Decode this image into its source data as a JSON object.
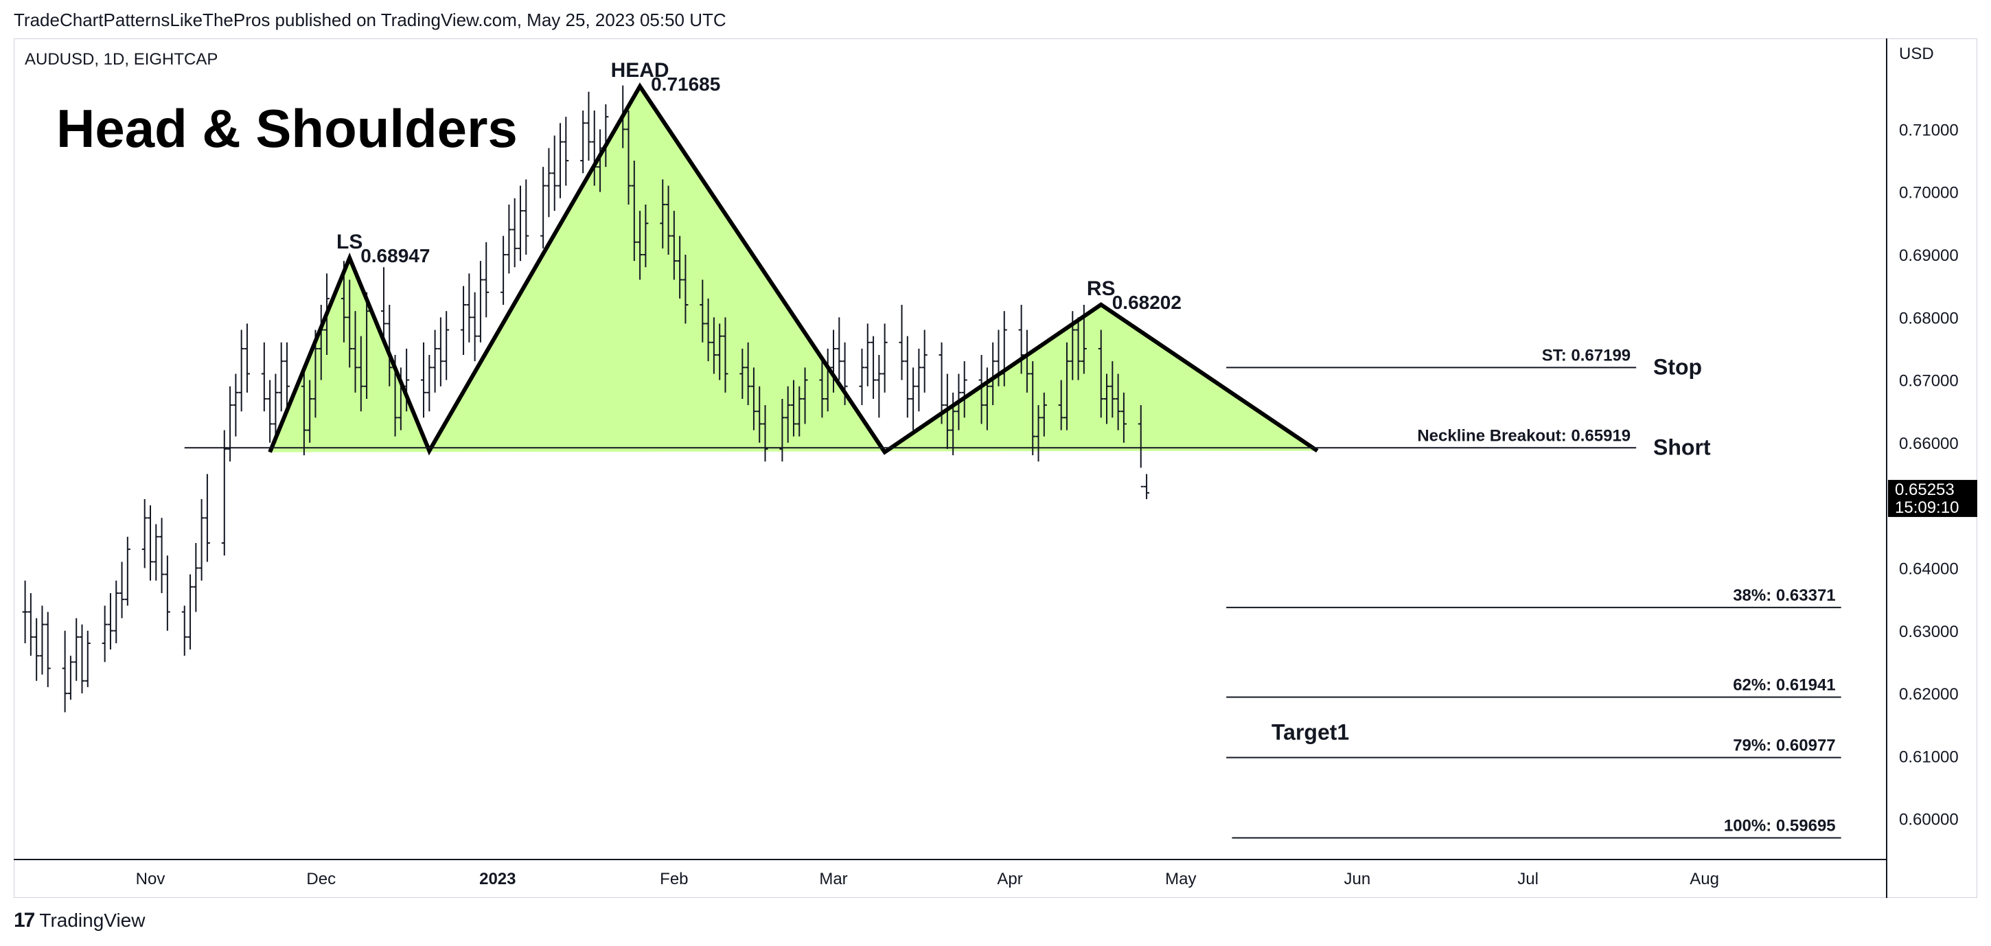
{
  "publisher_line": "TradeChartPatternsLikeThePros published on TradingView.com, May 25, 2023 05:50 UTC",
  "footer": {
    "brand": "TradingView",
    "logo_icon": "tradingview-logo-icon"
  },
  "chart_data": {
    "type": "line",
    "symbol": "AUDUSD, 1D, EIGHTCAP",
    "title": "Head & Shoulders",
    "currency": "USD",
    "ylim": [
      0.5935,
      0.7245
    ],
    "xlim": [
      "2022-10-08",
      "2023-09-02"
    ],
    "x_ticks": [
      {
        "date": "2022-11-01",
        "label": "Nov",
        "bold": false
      },
      {
        "date": "2022-12-01",
        "label": "Dec",
        "bold": false
      },
      {
        "date": "2023-01-01",
        "label": "2023",
        "bold": true
      },
      {
        "date": "2023-02-01",
        "label": "Feb",
        "bold": false
      },
      {
        "date": "2023-03-01",
        "label": "Mar",
        "bold": false
      },
      {
        "date": "2023-04-01",
        "label": "Apr",
        "bold": false
      },
      {
        "date": "2023-05-01",
        "label": "May",
        "bold": false
      },
      {
        "date": "2023-06-01",
        "label": "Jun",
        "bold": false
      },
      {
        "date": "2023-07-01",
        "label": "Jul",
        "bold": false
      },
      {
        "date": "2023-08-01",
        "label": "Aug",
        "bold": false
      }
    ],
    "y_ticks": [
      "0.60000",
      "0.61000",
      "0.62000",
      "0.63000",
      "0.64000",
      "0.66000",
      "0.67000",
      "0.68000",
      "0.69000",
      "0.70000",
      "0.71000"
    ],
    "last_price": {
      "value": "0.65253",
      "countdown": "15:09:10",
      "y": 0.65253
    },
    "pattern": {
      "fill_color": "#ccff99",
      "line_color": "#000000",
      "points": [
        {
          "date": "2022-11-22",
          "price": 0.6585
        },
        {
          "date": "2022-12-06",
          "price": 0.68947
        },
        {
          "date": "2022-12-20",
          "price": 0.6587
        },
        {
          "date": "2023-01-26",
          "price": 0.71685
        },
        {
          "date": "2023-03-10",
          "price": 0.6585
        },
        {
          "date": "2023-04-17",
          "price": 0.68202
        },
        {
          "date": "2023-05-25",
          "price": 0.6587
        }
      ]
    },
    "peak_labels": [
      {
        "name": "LS",
        "value": "0.68947",
        "date": "2022-12-06",
        "price": 0.68947
      },
      {
        "name": "HEAD",
        "value": "0.71685",
        "date": "2023-01-26",
        "price": 0.71685
      },
      {
        "name": "RS",
        "value": "0.68202",
        "date": "2023-04-17",
        "price": 0.68202
      }
    ],
    "levels": [
      {
        "label": "ST: 0.67199",
        "price": 0.67199,
        "from": "2023-05-09",
        "to": "2023-07-20",
        "side_label": "Stop"
      },
      {
        "label": "Neckline Breakout: 0.65919",
        "price": 0.65919,
        "from": "2022-11-07",
        "to": "2023-07-20",
        "side_label": "Short"
      },
      {
        "label": "38%: 0.63371",
        "price": 0.63371,
        "from": "2023-05-09",
        "to": "2023-08-25",
        "side_label": ""
      },
      {
        "label": "62%: 0.61941",
        "price": 0.61941,
        "from": "2023-05-09",
        "to": "2023-08-25",
        "side_label": ""
      },
      {
        "label": "79%: 0.60977",
        "price": 0.60977,
        "from": "2023-05-09",
        "to": "2023-08-25",
        "side_label": "Target1"
      },
      {
        "label": "100%: 0.59695",
        "price": 0.59695,
        "from": "2023-05-10",
        "to": "2023-08-25",
        "side_label": ""
      }
    ],
    "ohlc_bars": [
      [
        0.633,
        0.638,
        0.628,
        0.633
      ],
      [
        0.633,
        0.636,
        0.626,
        0.629
      ],
      [
        0.629,
        0.632,
        0.622,
        0.626
      ],
      [
        0.626,
        0.634,
        0.623,
        0.631
      ],
      [
        0.631,
        0.633,
        0.621,
        0.624
      ],
      [
        0.624,
        0.63,
        0.617,
        0.62
      ],
      [
        0.62,
        0.626,
        0.619,
        0.625
      ],
      [
        0.625,
        0.632,
        0.622,
        0.629
      ],
      [
        0.629,
        0.631,
        0.62,
        0.622
      ],
      [
        0.622,
        0.63,
        0.621,
        0.628
      ],
      [
        0.628,
        0.634,
        0.625,
        0.631
      ],
      [
        0.631,
        0.636,
        0.627,
        0.63
      ],
      [
        0.63,
        0.638,
        0.628,
        0.636
      ],
      [
        0.636,
        0.641,
        0.632,
        0.635
      ],
      [
        0.635,
        0.645,
        0.634,
        0.643
      ],
      [
        0.643,
        0.651,
        0.64,
        0.648
      ],
      [
        0.648,
        0.65,
        0.638,
        0.641
      ],
      [
        0.641,
        0.647,
        0.638,
        0.645
      ],
      [
        0.645,
        0.648,
        0.636,
        0.639
      ],
      [
        0.639,
        0.642,
        0.63,
        0.633
      ],
      [
        0.633,
        0.634,
        0.626,
        0.629
      ],
      [
        0.629,
        0.639,
        0.627,
        0.637
      ],
      [
        0.637,
        0.644,
        0.633,
        0.64
      ],
      [
        0.64,
        0.651,
        0.638,
        0.648
      ],
      [
        0.648,
        0.655,
        0.641,
        0.644
      ],
      [
        0.644,
        0.662,
        0.642,
        0.659
      ],
      [
        0.659,
        0.669,
        0.657,
        0.666
      ],
      [
        0.666,
        0.671,
        0.661,
        0.668
      ],
      [
        0.668,
        0.678,
        0.665,
        0.675
      ],
      [
        0.675,
        0.679,
        0.668,
        0.671
      ],
      [
        0.671,
        0.676,
        0.665,
        0.667
      ],
      [
        0.667,
        0.67,
        0.66,
        0.663
      ],
      [
        0.663,
        0.671,
        0.66,
        0.668
      ],
      [
        0.668,
        0.676,
        0.665,
        0.673
      ],
      [
        0.673,
        0.676,
        0.665,
        0.669
      ],
      [
        0.669,
        0.672,
        0.658,
        0.662
      ],
      [
        0.662,
        0.67,
        0.66,
        0.667
      ],
      [
        0.667,
        0.678,
        0.664,
        0.675
      ],
      [
        0.675,
        0.682,
        0.67,
        0.678
      ],
      [
        0.678,
        0.687,
        0.674,
        0.683
      ],
      [
        0.683,
        0.689,
        0.676,
        0.68
      ],
      [
        0.68,
        0.686,
        0.672,
        0.675
      ],
      [
        0.675,
        0.681,
        0.668,
        0.672
      ],
      [
        0.672,
        0.677,
        0.665,
        0.669
      ],
      [
        0.669,
        0.684,
        0.667,
        0.681
      ],
      [
        0.681,
        0.688,
        0.676,
        0.679
      ],
      [
        0.679,
        0.682,
        0.669,
        0.672
      ],
      [
        0.672,
        0.674,
        0.661,
        0.664
      ],
      [
        0.664,
        0.672,
        0.662,
        0.669
      ],
      [
        0.669,
        0.675,
        0.665,
        0.67
      ],
      [
        0.67,
        0.676,
        0.664,
        0.668
      ],
      [
        0.668,
        0.674,
        0.665,
        0.672
      ],
      [
        0.672,
        0.678,
        0.668,
        0.675
      ],
      [
        0.675,
        0.68,
        0.669,
        0.673
      ],
      [
        0.673,
        0.681,
        0.67,
        0.678
      ],
      [
        0.678,
        0.685,
        0.674,
        0.682
      ],
      [
        0.682,
        0.687,
        0.676,
        0.68
      ],
      [
        0.68,
        0.684,
        0.673,
        0.677
      ],
      [
        0.677,
        0.689,
        0.676,
        0.686
      ],
      [
        0.686,
        0.692,
        0.68,
        0.684
      ],
      [
        0.684,
        0.693,
        0.682,
        0.69
      ],
      [
        0.69,
        0.698,
        0.687,
        0.694
      ],
      [
        0.694,
        0.699,
        0.688,
        0.691
      ],
      [
        0.691,
        0.701,
        0.689,
        0.697
      ],
      [
        0.697,
        0.702,
        0.69,
        0.693
      ],
      [
        0.693,
        0.704,
        0.691,
        0.701
      ],
      [
        0.701,
        0.707,
        0.696,
        0.703
      ],
      [
        0.703,
        0.709,
        0.697,
        0.701
      ],
      [
        0.701,
        0.711,
        0.699,
        0.708
      ],
      [
        0.708,
        0.712,
        0.701,
        0.705
      ],
      [
        0.705,
        0.713,
        0.703,
        0.711
      ],
      [
        0.711,
        0.716,
        0.705,
        0.708
      ],
      [
        0.708,
        0.713,
        0.701,
        0.704
      ],
      [
        0.704,
        0.71,
        0.7,
        0.707
      ],
      [
        0.707,
        0.714,
        0.704,
        0.712
      ],
      [
        0.712,
        0.717,
        0.707,
        0.71
      ],
      [
        0.71,
        0.713,
        0.698,
        0.701
      ],
      [
        0.701,
        0.705,
        0.689,
        0.692
      ],
      [
        0.692,
        0.697,
        0.686,
        0.69
      ],
      [
        0.69,
        0.698,
        0.688,
        0.695
      ],
      [
        0.695,
        0.702,
        0.691,
        0.698
      ],
      [
        0.698,
        0.701,
        0.69,
        0.693
      ],
      [
        0.693,
        0.697,
        0.686,
        0.689
      ],
      [
        0.689,
        0.693,
        0.683,
        0.686
      ],
      [
        0.686,
        0.69,
        0.679,
        0.682
      ],
      [
        0.682,
        0.686,
        0.676,
        0.679
      ],
      [
        0.679,
        0.683,
        0.673,
        0.676
      ],
      [
        0.676,
        0.68,
        0.671,
        0.674
      ],
      [
        0.674,
        0.679,
        0.67,
        0.677
      ],
      [
        0.677,
        0.68,
        0.668,
        0.671
      ],
      [
        0.671,
        0.675,
        0.667,
        0.672
      ],
      [
        0.672,
        0.676,
        0.666,
        0.669
      ],
      [
        0.669,
        0.672,
        0.662,
        0.665
      ],
      [
        0.665,
        0.669,
        0.66,
        0.663
      ],
      [
        0.663,
        0.666,
        0.657,
        0.659
      ],
      [
        0.659,
        0.667,
        0.657,
        0.664
      ],
      [
        0.664,
        0.669,
        0.66,
        0.666
      ],
      [
        0.666,
        0.67,
        0.661,
        0.663
      ],
      [
        0.663,
        0.669,
        0.661,
        0.667
      ],
      [
        0.667,
        0.672,
        0.663,
        0.67
      ],
      [
        0.67,
        0.673,
        0.664,
        0.667
      ],
      [
        0.667,
        0.675,
        0.665,
        0.672
      ],
      [
        0.672,
        0.678,
        0.668,
        0.675
      ],
      [
        0.675,
        0.68,
        0.67,
        0.673
      ],
      [
        0.673,
        0.676,
        0.666,
        0.669
      ],
      [
        0.669,
        0.675,
        0.666,
        0.672
      ],
      [
        0.672,
        0.679,
        0.669,
        0.676
      ],
      [
        0.676,
        0.677,
        0.667,
        0.67
      ],
      [
        0.67,
        0.674,
        0.664,
        0.671
      ],
      [
        0.671,
        0.679,
        0.668,
        0.676
      ],
      [
        0.676,
        0.682,
        0.67,
        0.673
      ],
      [
        0.673,
        0.677,
        0.664,
        0.667
      ],
      [
        0.667,
        0.672,
        0.662,
        0.669
      ],
      [
        0.669,
        0.675,
        0.665,
        0.672
      ],
      [
        0.672,
        0.678,
        0.668,
        0.674
      ],
      [
        0.674,
        0.676,
        0.663,
        0.666
      ],
      [
        0.666,
        0.671,
        0.659,
        0.662
      ],
      [
        0.662,
        0.668,
        0.658,
        0.665
      ],
      [
        0.665,
        0.671,
        0.662,
        0.668
      ],
      [
        0.668,
        0.673,
        0.664,
        0.67
      ],
      [
        0.67,
        0.674,
        0.663,
        0.666
      ],
      [
        0.666,
        0.672,
        0.662,
        0.669
      ],
      [
        0.669,
        0.676,
        0.666,
        0.673
      ],
      [
        0.673,
        0.678,
        0.669,
        0.671
      ],
      [
        0.671,
        0.681,
        0.669,
        0.678
      ],
      [
        0.678,
        0.682,
        0.671,
        0.674
      ],
      [
        0.674,
        0.678,
        0.668,
        0.671
      ],
      [
        0.671,
        0.673,
        0.658,
        0.661
      ],
      [
        0.661,
        0.666,
        0.657,
        0.664
      ],
      [
        0.664,
        0.668,
        0.661,
        0.666
      ],
      [
        0.666,
        0.67,
        0.662,
        0.664
      ],
      [
        0.664,
        0.676,
        0.662,
        0.673
      ],
      [
        0.673,
        0.681,
        0.67,
        0.678
      ],
      [
        0.678,
        0.68,
        0.67,
        0.673
      ],
      [
        0.673,
        0.682,
        0.671,
        0.675
      ],
      [
        0.675,
        0.678,
        0.664,
        0.667
      ],
      [
        0.667,
        0.671,
        0.663,
        0.669
      ],
      [
        0.669,
        0.673,
        0.664,
        0.667
      ],
      [
        0.667,
        0.671,
        0.662,
        0.665
      ],
      [
        0.665,
        0.668,
        0.66,
        0.663
      ],
      [
        0.663,
        0.666,
        0.656,
        0.653
      ],
      [
        0.653,
        0.655,
        0.651,
        0.652
      ]
    ]
  }
}
